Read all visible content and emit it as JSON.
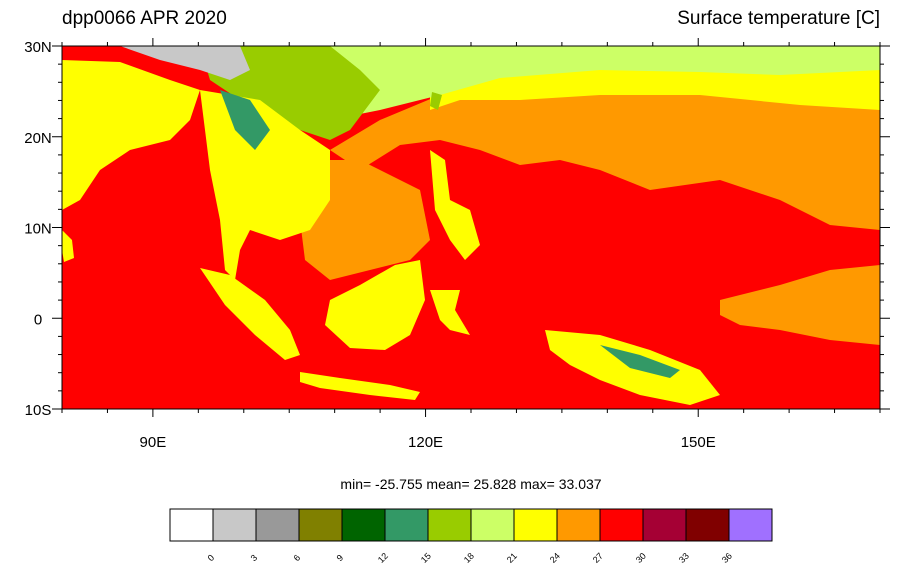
{
  "title_left": "dpp0066 APR 2020",
  "title_right": "Surface temperature [C]",
  "lat_ticks": [
    "30N",
    "20N",
    "10N",
    "0",
    "10S"
  ],
  "lon_ticks": [
    "90E",
    "120E",
    "150E"
  ],
  "stats": "min= -25.755  mean=  25.828  max=  33.037",
  "colorbar": {
    "colors": [
      "#ffffff",
      "#c8c8c8",
      "#999999",
      "#808000",
      "#006400",
      "#339966",
      "#99cc00",
      "#ccff66",
      "#ffff00",
      "#ff9900",
      "#ff0000",
      "#a50034",
      "#800000",
      "#a070ff"
    ],
    "labels": [
      0,
      3,
      6,
      9,
      12,
      15,
      18,
      21,
      24,
      27,
      30,
      33,
      36
    ]
  }
}
